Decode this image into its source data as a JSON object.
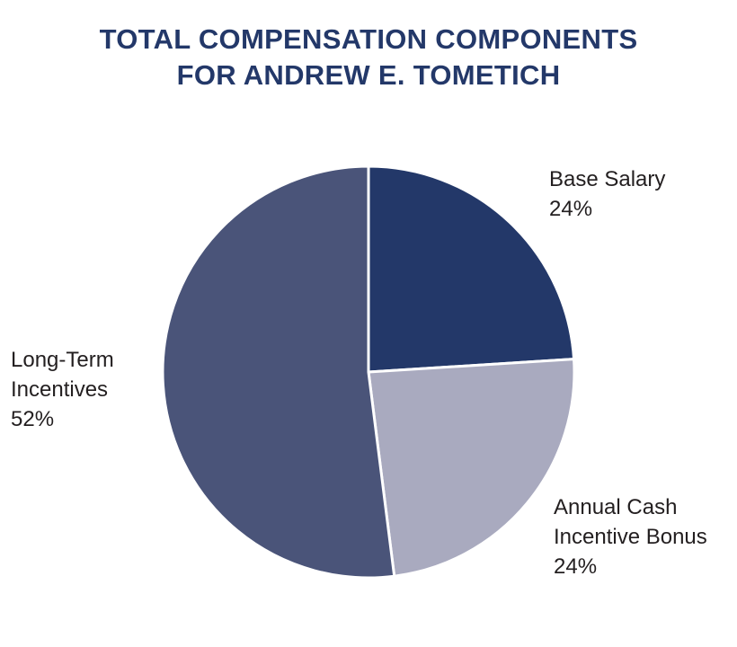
{
  "chart_data": {
    "type": "pie",
    "title": [
      "TOTAL COMPENSATION COMPONENTS",
      "FOR ANDREW E. TOMETICH"
    ],
    "slices": [
      {
        "label": [
          "Base Salary"
        ],
        "value": 24,
        "value_label": "24%",
        "color": "#233869"
      },
      {
        "label": [
          "Annual Cash",
          "Incentive Bonus"
        ],
        "value": 24,
        "value_label": "24%",
        "color": "#a9aabf"
      },
      {
        "label": [
          "Long-Term",
          "Incentives"
        ],
        "value": 52,
        "value_label": "52%",
        "color": "#4a5479"
      }
    ],
    "start_angle": "12 o'clock",
    "direction": "clockwise",
    "legend": "none"
  },
  "colors": {
    "title": "#233869",
    "label_text": "#231f20",
    "slice_border": "#ffffff"
  }
}
